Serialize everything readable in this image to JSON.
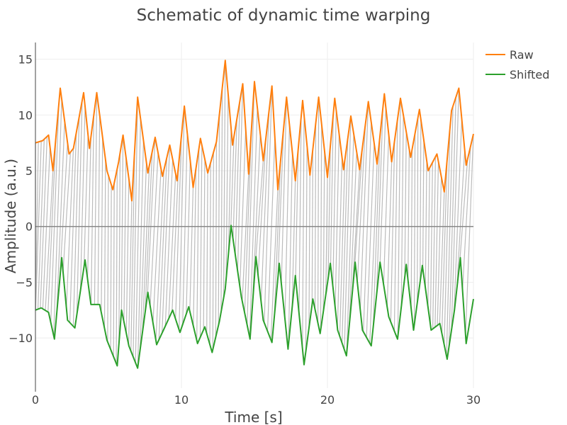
{
  "chart_data": {
    "type": "line",
    "title": "Schematic of dynamic time warping",
    "xlabel": "Time [s]",
    "ylabel": "Amplitude (a.u.)",
    "xlim": [
      0,
      30
    ],
    "ylim": [
      -14.5,
      16.5
    ],
    "xticks": [
      0,
      10,
      20,
      30
    ],
    "yticks": [
      -10,
      -5,
      0,
      5,
      10,
      15
    ],
    "ytick_labels": [
      "−10",
      "−5",
      "0",
      "5",
      "10",
      "15"
    ],
    "grid": true,
    "legend_position": "top-right",
    "zero_line": 0,
    "colors": {
      "Raw": "#ff7f0e",
      "Shifted": "#2ca02c",
      "warp_links": "#bbbbbb",
      "grid": "#eeeeee"
    },
    "series": [
      {
        "name": "Raw",
        "x": [
          0,
          0.5,
          0.9,
          1.2,
          1.7,
          2.3,
          2.6,
          3.3,
          3.7,
          4.2,
          4.9,
          5.3,
          5.7,
          6.0,
          6.6,
          7.0,
          7.7,
          8.2,
          8.7,
          9.2,
          9.7,
          10.2,
          10.8,
          11.3,
          11.8,
          12.4,
          13.0,
          13.5,
          14.2,
          14.6,
          15.0,
          15.6,
          16.2,
          16.6,
          17.2,
          17.8,
          18.3,
          18.8,
          19.4,
          20.0,
          20.5,
          21.1,
          21.6,
          22.2,
          22.8,
          23.4,
          23.9,
          24.4,
          25.0,
          25.7,
          26.3,
          26.9,
          27.5,
          28.0,
          28.5,
          29.0,
          29.5,
          30.0
        ],
        "y": [
          7.5,
          7.7,
          8.2,
          5.0,
          12.4,
          6.5,
          7.0,
          12.0,
          7.0,
          12.0,
          5.0,
          3.3,
          5.8,
          8.2,
          2.3,
          11.6,
          4.8,
          8.0,
          4.5,
          7.3,
          4.1,
          10.8,
          3.5,
          7.9,
          4.8,
          7.6,
          14.9,
          7.3,
          12.8,
          4.7,
          13.0,
          5.9,
          12.6,
          3.3,
          11.6,
          4.1,
          11.3,
          4.6,
          11.6,
          4.4,
          11.5,
          5.1,
          9.9,
          5.1,
          11.2,
          5.6,
          11.9,
          5.8,
          11.5,
          6.2,
          10.5,
          5.0,
          6.5,
          3.1,
          10.4,
          12.4,
          5.5,
          8.3
        ]
      },
      {
        "name": "Shifted",
        "x": [
          0,
          0.4,
          0.9,
          1.3,
          1.8,
          2.2,
          2.7,
          3.4,
          3.8,
          4.4,
          4.9,
          5.6,
          5.9,
          6.4,
          7.0,
          7.7,
          8.3,
          8.8,
          9.4,
          9.9,
          10.5,
          11.1,
          11.6,
          12.1,
          12.6,
          13.0,
          13.4,
          14.1,
          14.7,
          15.1,
          15.6,
          16.2,
          16.7,
          17.3,
          17.8,
          18.4,
          19.0,
          19.5,
          20.2,
          20.7,
          21.3,
          21.9,
          22.4,
          23.0,
          23.6,
          24.2,
          24.8,
          25.4,
          25.9,
          26.5,
          27.1,
          27.7,
          28.2,
          28.7,
          29.1,
          29.5,
          30.0
        ],
        "y": [
          -7.5,
          -7.3,
          -7.7,
          -10.1,
          -2.8,
          -8.4,
          -9.1,
          -3.0,
          -7.0,
          -7.0,
          -10.2,
          -12.5,
          -7.5,
          -10.7,
          -12.7,
          -5.9,
          -10.6,
          -9.2,
          -7.5,
          -9.5,
          -7.2,
          -10.5,
          -9.0,
          -11.3,
          -8.5,
          -5.6,
          0.1,
          -6.3,
          -10.1,
          -2.7,
          -8.4,
          -10.4,
          -3.3,
          -11.0,
          -4.4,
          -12.4,
          -6.5,
          -9.6,
          -3.3,
          -9.3,
          -11.6,
          -3.2,
          -9.3,
          -10.7,
          -3.2,
          -8.1,
          -10.1,
          -3.4,
          -9.3,
          -3.5,
          -9.3,
          -8.7,
          -11.9,
          -7.5,
          -2.8,
          -10.5,
          -6.5
        ]
      }
    ]
  }
}
